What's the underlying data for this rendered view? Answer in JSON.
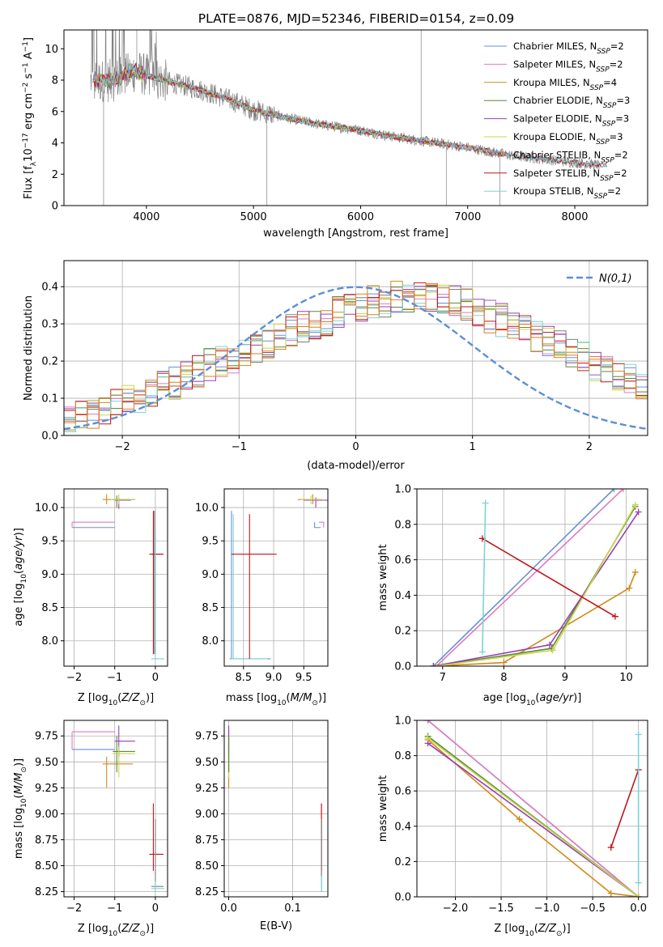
{
  "title": "PLATE=0876, MJD=52346, FIBERID=0154, z=0.09",
  "colors": {
    "Chabrier MILES": "#6a8fd6",
    "Salpeter MILES": "#e07bbf",
    "Kroupa MILES": "#d08a1a",
    "Chabrier ELODIE": "#5b8a3a",
    "Salpeter ELODIE": "#9b3fb3",
    "Kroupa ELODIE": "#c6d84a",
    "Chabrier STELIB": "#7d7d7d",
    "Salpeter STELIB": "#c0151b",
    "Kroupa STELIB": "#7dd3d6",
    "data": "#808080",
    "extra_orange": "#e57b25",
    "normal": "#5b8fd6"
  },
  "chart_data": [
    {
      "id": "spectrum",
      "type": "line",
      "xlabel": "wavelength [Angstrom, rest frame]",
      "ylabel": "Flux [f_λ10^-17 erg cm^-2 s^-1 A^-1]",
      "xlim": [
        3230,
        8680
      ],
      "ylim": [
        0,
        11.2
      ],
      "xticks": [
        4000,
        5000,
        6000,
        7000,
        8000
      ],
      "yticks": [
        0,
        2,
        4,
        6,
        8,
        10
      ],
      "grid": false,
      "legend_position": "top-right",
      "legend": [
        {
          "name": "Chabrier MILES",
          "nssp": "2"
        },
        {
          "name": "Salpeter MILES",
          "nssp": "2"
        },
        {
          "name": "Kroupa MILES",
          "nssp": "4"
        },
        {
          "name": "Chabrier ELODIE",
          "nssp": "3"
        },
        {
          "name": "Salpeter ELODIE",
          "nssp": "3"
        },
        {
          "name": "Kroupa ELODIE",
          "nssp": "3"
        },
        {
          "name": "Chabrier STELIB",
          "nssp": "2"
        },
        {
          "name": "Salpeter STELIB",
          "nssp": "2"
        },
        {
          "name": "Kroupa STELIB",
          "nssp": "2"
        }
      ],
      "continuum": {
        "x": [
          3500,
          3700,
          3900,
          4000,
          4200,
          4500,
          4800,
          5000,
          5300,
          5600,
          6000,
          6300,
          6600,
          7000,
          7400,
          7800,
          8200
        ],
        "y": [
          7.9,
          8.0,
          8.6,
          8.3,
          7.9,
          7.4,
          6.7,
          6.1,
          5.6,
          5.2,
          4.8,
          4.4,
          4.1,
          3.7,
          3.2,
          2.9,
          2.6
        ]
      }
    },
    {
      "id": "residuals",
      "type": "line",
      "xlabel": "(data-model)/error",
      "ylabel": "Normed distribution",
      "xlim": [
        -2.5,
        2.5
      ],
      "ylim": [
        0,
        0.47
      ],
      "xticks": [
        -2,
        -1,
        0,
        1,
        2
      ],
      "yticks": [
        0.0,
        0.1,
        0.2,
        0.3,
        0.4
      ],
      "grid": true,
      "legend_position": "top-right",
      "legend_label": "N(0,1)",
      "bins_from": -2.5,
      "bin_width": 0.1,
      "base_hist": [
        0.05,
        0.05,
        0.06,
        0.07,
        0.08,
        0.09,
        0.1,
        0.11,
        0.13,
        0.14,
        0.16,
        0.17,
        0.19,
        0.2,
        0.21,
        0.22,
        0.24,
        0.25,
        0.26,
        0.28,
        0.29,
        0.3,
        0.31,
        0.33,
        0.34,
        0.35,
        0.36,
        0.36,
        0.37,
        0.37,
        0.37,
        0.37,
        0.36,
        0.36,
        0.35,
        0.33,
        0.32,
        0.31,
        0.29,
        0.28,
        0.27,
        0.25,
        0.24,
        0.22,
        0.21,
        0.19,
        0.18,
        0.16,
        0.15,
        0.14
      ]
    },
    {
      "id": "age_vs_Z",
      "type": "scatter",
      "xlabel": "Z [log10(Z/Z⊙)]",
      "ylabel": "age [log10(age/yr)]",
      "xlim": [
        -2.25,
        0.3
      ],
      "ylim": [
        7.62,
        10.28
      ],
      "xticks": [
        -2,
        -1,
        0
      ],
      "yticks": [
        8.0,
        8.5,
        9.0,
        9.5,
        10.0
      ],
      "grid": true
    },
    {
      "id": "age_vs_mass",
      "type": "scatter",
      "xlabel": "mass [log10(M/M⊙)]",
      "ylabel": "",
      "xlim": [
        8.18,
        9.9
      ],
      "ylim": [
        7.62,
        10.28
      ],
      "xticks": [
        8.5,
        9.0,
        9.5
      ],
      "yticks": [
        8.0,
        8.5,
        9.0,
        9.5,
        10.0
      ],
      "grid": true
    },
    {
      "id": "weight_vs_age",
      "type": "line",
      "xlabel": "age [log10(age/yr)]",
      "ylabel": "mass weight",
      "xlim": [
        6.58,
        10.35
      ],
      "ylim": [
        0,
        1
      ],
      "xticks": [
        7,
        8,
        9,
        10
      ],
      "yticks": [
        0.0,
        0.2,
        0.4,
        0.6,
        0.8,
        1.0
      ],
      "grid": true,
      "series": [
        {
          "model": "Chabrier MILES",
          "x": [
            6.85,
            9.8
          ],
          "y": [
            0.0,
            1.0
          ]
        },
        {
          "model": "Salpeter MILES",
          "x": [
            6.9,
            9.95
          ],
          "y": [
            0.0,
            1.0
          ]
        },
        {
          "model": "Kroupa MILES",
          "x": [
            6.85,
            8.0,
            10.05,
            10.15
          ],
          "y": [
            0.0,
            0.02,
            0.44,
            0.53
          ]
        },
        {
          "model": "Chabrier ELODIE",
          "x": [
            6.85,
            8.78,
            10.15
          ],
          "y": [
            0.0,
            0.1,
            0.9
          ]
        },
        {
          "model": "Salpeter ELODIE",
          "x": [
            6.85,
            8.75,
            10.2
          ],
          "y": [
            0.0,
            0.12,
            0.87
          ]
        },
        {
          "model": "Kroupa ELODIE",
          "x": [
            6.9,
            8.8,
            10.15
          ],
          "y": [
            0.0,
            0.09,
            0.91
          ]
        },
        {
          "model": "Salpeter STELIB",
          "x": [
            7.65,
            9.82
          ],
          "y": [
            0.72,
            0.28
          ]
        },
        {
          "model": "Kroupa STELIB",
          "x": [
            7.65,
            7.7
          ],
          "y": [
            0.08,
            0.92
          ]
        }
      ]
    },
    {
      "id": "mass_vs_Z",
      "type": "scatter",
      "xlabel": "Z [log10(Z/Z⊙)]",
      "ylabel": "mass [log10(M/M⊙)]",
      "xlim": [
        -2.25,
        0.3
      ],
      "ylim": [
        8.2,
        9.9
      ],
      "xticks": [
        -2,
        -1,
        0
      ],
      "yticks": [
        8.25,
        8.5,
        8.75,
        9.0,
        9.25,
        9.5,
        9.75
      ],
      "grid": true
    },
    {
      "id": "mass_vs_ebv",
      "type": "scatter",
      "xlabel": "E(B-V)",
      "ylabel": "",
      "xlim": [
        -0.007,
        0.155
      ],
      "ylim": [
        8.2,
        9.9
      ],
      "xticks": [
        0.0,
        0.1
      ],
      "yticks": [
        8.25,
        8.5,
        8.75,
        9.0,
        9.25,
        9.5,
        9.75
      ],
      "grid": true
    },
    {
      "id": "weight_vs_Z",
      "type": "line",
      "xlabel": "Z [log10(Z/Z⊙)]",
      "ylabel": "mass weight",
      "xlim": [
        -2.42,
        0.1
      ],
      "ylim": [
        0,
        1
      ],
      "xticks": [
        -2.0,
        -1.5,
        -1.0,
        -0.5,
        0.0
      ],
      "yticks": [
        0.0,
        0.2,
        0.4,
        0.6,
        0.8,
        1.0
      ],
      "grid": true,
      "series": [
        {
          "model": "Chabrier MILES",
          "x": [
            -2.3,
            0.0
          ],
          "y": [
            1.0,
            0.0
          ]
        },
        {
          "model": "Salpeter MILES",
          "x": [
            -2.3,
            0.0
          ],
          "y": [
            1.0,
            0.0
          ]
        },
        {
          "model": "Kroupa MILES",
          "x": [
            -2.3,
            -1.3,
            -0.3,
            0.0
          ],
          "y": [
            0.89,
            0.44,
            0.02,
            0.0
          ]
        },
        {
          "model": "Chabrier ELODIE",
          "x": [
            -2.3,
            0.0
          ],
          "y": [
            0.91,
            0.0
          ]
        },
        {
          "model": "Salpeter ELODIE",
          "x": [
            -2.3,
            0.0
          ],
          "y": [
            0.87,
            0.0
          ]
        },
        {
          "model": "Kroupa ELODIE",
          "x": [
            -2.3,
            0.0
          ],
          "y": [
            0.9,
            0.0
          ]
        },
        {
          "model": "Salpeter STELIB",
          "x": [
            -0.3,
            0.0
          ],
          "y": [
            0.28,
            0.72
          ]
        },
        {
          "model": "Kroupa STELIB",
          "x": [
            0.0,
            0.0
          ],
          "y": [
            0.08,
            0.92
          ]
        }
      ]
    }
  ]
}
